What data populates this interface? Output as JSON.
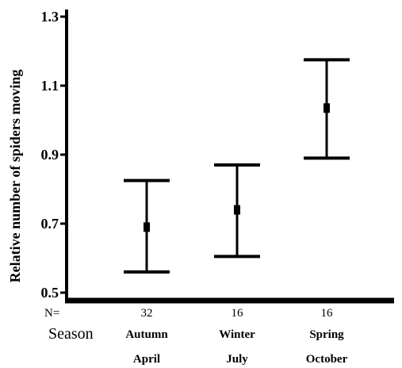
{
  "chart_data": {
    "type": "errorbar",
    "ylabel": "Relative number of spiders moving",
    "ylim": [
      0.5,
      1.3
    ],
    "yticks": [
      "0.5",
      "0.7",
      "0.9",
      "1.1",
      "1.3"
    ],
    "n_row_label": "N=",
    "season_row_label": "Season",
    "categories": [
      {
        "season": "Autumn",
        "month": "April",
        "n": "32",
        "mean": 0.69,
        "lower": 0.56,
        "upper": 0.825
      },
      {
        "season": "Winter",
        "month": "July",
        "n": "16",
        "mean": 0.74,
        "lower": 0.605,
        "upper": 0.87
      },
      {
        "season": "Spring",
        "month": "October",
        "n": "16",
        "mean": 1.035,
        "lower": 0.89,
        "upper": 1.175
      }
    ]
  }
}
